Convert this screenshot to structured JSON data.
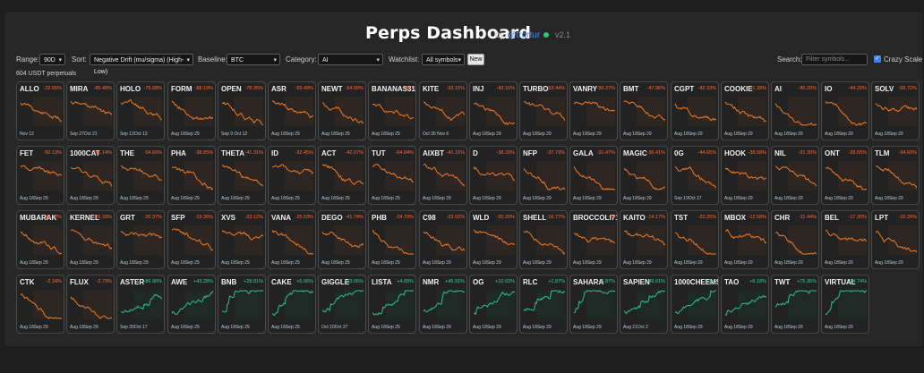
{
  "header": {
    "title": "Perps Dashboard",
    "by": "by",
    "handle": "@trdrtur",
    "version": "v2.1"
  },
  "controls": {
    "range_label": "Range:",
    "range_value": "90D",
    "sort_label": "Sort:",
    "sort_value": "Negative Drift (mu/sigma) (High-Low)",
    "baseline_label": "Baseline:",
    "baseline_value": "BTC",
    "category_label": "Category:",
    "category_value": "AI",
    "watchlist_label": "Watchlist:",
    "watchlist_value": "All symbols",
    "new_button": "New",
    "search_label": "Search:",
    "search_placeholder": "Filter symbols...",
    "crazy_scale_label": "Crazy Scale",
    "crazy_scale_checked": true
  },
  "summary": {
    "count_text": "604 USDT perpetuals"
  },
  "colors": {
    "negative": "#ff6a3d",
    "positive": "#3ad29f",
    "line_down": "#f07b22",
    "line_up": "#2fbf8a"
  },
  "tiles": [
    {
      "sym": "ALLO",
      "chg": "-22.65%",
      "dates": "Nov 12",
      "trend": "down"
    },
    {
      "sym": "MIRA",
      "chg": "-85.49%",
      "dates": "Sep 27Oct 21",
      "trend": "down"
    },
    {
      "sym": "HOLO",
      "chg": "-75.68%",
      "dates": "Sep 12Oct 13",
      "trend": "down"
    },
    {
      "sym": "FORM",
      "chg": "-88.19%",
      "dates": "Aug 18Sep 29",
      "trend": "down"
    },
    {
      "sym": "OPEN",
      "chg": "-78.35%",
      "dates": "Sep 9 Oct 12",
      "trend": "down"
    },
    {
      "sym": "ASR",
      "chg": "-69.49%",
      "dates": "Aug 18Sep 29",
      "trend": "down"
    },
    {
      "sym": "NEWT",
      "chg": "-54.90%",
      "dates": "Aug 18Sep 29",
      "trend": "down"
    },
    {
      "sym": "BANANAS31",
      "chg": "-59.7",
      "dates": "Aug 18Sep 29",
      "trend": "down"
    },
    {
      "sym": "KITE",
      "chg": "-33.15%",
      "dates": "Oct 30 Nov 6",
      "trend": "down"
    },
    {
      "sym": "INJ",
      "chg": "-43.16%",
      "dates": "Aug 18Sep 29",
      "trend": "down"
    },
    {
      "sym": "TURBO",
      "chg": "-53.44%",
      "dates": "Aug 18Sep 29",
      "trend": "down"
    },
    {
      "sym": "VANRY",
      "chg": "-56.27%",
      "dates": "Aug 18Sep 29",
      "trend": "down"
    },
    {
      "sym": "BMT",
      "chg": "-47.96%",
      "dates": "Aug 18Sep 29",
      "trend": "down"
    },
    {
      "sym": "CGPT",
      "chg": "-42.33%",
      "dates": "Aug 18Sep 29",
      "trend": "down"
    },
    {
      "sym": "COOKIE",
      "chg": "-41.28%",
      "dates": "Aug 18Sep 29",
      "trend": "down"
    },
    {
      "sym": "AI",
      "chg": "-45.29%",
      "dates": "Aug 18Sep 29",
      "trend": "down"
    },
    {
      "sym": "IO",
      "chg": "-44.20%",
      "dates": "Aug 18Sep 29",
      "trend": "down"
    },
    {
      "sym": "SOLV",
      "chg": "-56.72%",
      "dates": "Aug 18Sep 29",
      "trend": "down"
    },
    {
      "sym": "FET",
      "chg": "-50.13%",
      "dates": "Aug 18Sep 29",
      "trend": "down"
    },
    {
      "sym": "1000CAT",
      "chg": "-41.14%",
      "dates": "Aug 18Sep 29",
      "trend": "down"
    },
    {
      "sym": "THE",
      "chg": "-54.60%",
      "dates": "Aug 18Sep 29",
      "trend": "down"
    },
    {
      "sym": "PHA",
      "chg": "-38.85%",
      "dates": "Aug 18Sep 29",
      "trend": "down"
    },
    {
      "sym": "THETA",
      "chg": "-41.31%",
      "dates": "Aug 18Sep 29",
      "trend": "down"
    },
    {
      "sym": "ID",
      "chg": "-32.45%",
      "dates": "Aug 18Sep 29",
      "trend": "down"
    },
    {
      "sym": "ACT",
      "chg": "-42.07%",
      "dates": "Aug 18Sep 29",
      "trend": "down"
    },
    {
      "sym": "TUT",
      "chg": "-64.84%",
      "dates": "Aug 18Sep 29",
      "trend": "down"
    },
    {
      "sym": "AIXBT",
      "chg": "-41.15%",
      "dates": "Aug 18Sep 29",
      "trend": "down"
    },
    {
      "sym": "D",
      "chg": "-38.33%",
      "dates": "Aug 18Sep 29",
      "trend": "down"
    },
    {
      "sym": "NFP",
      "chg": "-37.73%",
      "dates": "Aug 18Sep 29",
      "trend": "down"
    },
    {
      "sym": "GALA",
      "chg": "-31.47%",
      "dates": "Aug 18Sep 29",
      "trend": "down"
    },
    {
      "sym": "MAGIC",
      "chg": "-36.41%",
      "dates": "Aug 18Sep 29",
      "trend": "down"
    },
    {
      "sym": "0G",
      "chg": "-44.65%",
      "dates": "Sep 19Oct 17",
      "trend": "down"
    },
    {
      "sym": "HOOK",
      "chg": "-38.58%",
      "dates": "Aug 18Sep 29",
      "trend": "down"
    },
    {
      "sym": "NIL",
      "chg": "-31.39%",
      "dates": "Aug 18Sep 29",
      "trend": "down"
    },
    {
      "sym": "ONT",
      "chg": "-28.65%",
      "dates": "Aug 18Sep 29",
      "trend": "down"
    },
    {
      "sym": "TLM",
      "chg": "-34.60%",
      "dates": "Aug 18Sep 29",
      "trend": "down"
    },
    {
      "sym": "MUBARAK",
      "chg": "-35.12%",
      "dates": "Aug 18Sep 29",
      "trend": "down"
    },
    {
      "sym": "KERNEL",
      "chg": "-35.33%",
      "dates": "Aug 18Sep 29",
      "trend": "down"
    },
    {
      "sym": "GRT",
      "chg": "-20.37%",
      "dates": "Aug 18Sep 29",
      "trend": "down"
    },
    {
      "sym": "SFP",
      "chg": "-19.36%",
      "dates": "Aug 18Sep 29",
      "trend": "down"
    },
    {
      "sym": "XVS",
      "chg": "-23.12%",
      "dates": "Aug 18Sep 29",
      "trend": "down"
    },
    {
      "sym": "VANA",
      "chg": "-25.53%",
      "dates": "Aug 18Sep 29",
      "trend": "down"
    },
    {
      "sym": "DEGO",
      "chg": "-41.74%",
      "dates": "Aug 18Sep 29",
      "trend": "down"
    },
    {
      "sym": "PHB",
      "chg": "-24.70%",
      "dates": "Aug 18Sep 29",
      "trend": "down"
    },
    {
      "sym": "C98",
      "chg": "-23.02%",
      "dates": "Aug 18Sep 29",
      "trend": "down"
    },
    {
      "sym": "WLD",
      "chg": "-20.20%",
      "dates": "Aug 18Sep 29",
      "trend": "down"
    },
    {
      "sym": "SHELL",
      "chg": "-16.77%",
      "dates": "Aug 18Sep 29",
      "trend": "down"
    },
    {
      "sym": "BROCCOLI714",
      "chg": "-26",
      "dates": "Aug 18Sep 29",
      "trend": "down"
    },
    {
      "sym": "KAITO",
      "chg": "-14.17%",
      "dates": "Aug 18Sep 29",
      "trend": "down"
    },
    {
      "sym": "TST",
      "chg": "-23.25%",
      "dates": "Aug 18Sep 29",
      "trend": "down"
    },
    {
      "sym": "MBOX",
      "chg": "-12.58%",
      "dates": "Aug 18Sep 29",
      "trend": "down"
    },
    {
      "sym": "CHR",
      "chg": "-11.44%",
      "dates": "Aug 18Sep 29",
      "trend": "down"
    },
    {
      "sym": "BEL",
      "chg": "-17.30%",
      "dates": "Aug 18Sep 29",
      "trend": "down"
    },
    {
      "sym": "LPT",
      "chg": "-10.26%",
      "dates": "Aug 18Sep 29",
      "trend": "down"
    },
    {
      "sym": "CTK",
      "chg": "-2.34%",
      "dates": "Aug 18Sep 29",
      "trend": "down"
    },
    {
      "sym": "FLUX",
      "chg": "-2.73%",
      "dates": "Aug 18Sep 29",
      "trend": "down"
    },
    {
      "sym": "ASTER",
      "chg": "+86.90%",
      "dates": "Sep 20Oct 17",
      "trend": "up"
    },
    {
      "sym": "AWE",
      "chg": "+43.28%",
      "dates": "Aug 18Sep 29",
      "trend": "up"
    },
    {
      "sym": "BNB",
      "chg": "+28.91%",
      "dates": "Aug 18Sep 29",
      "trend": "up"
    },
    {
      "sym": "CAKE",
      "chg": "+5.06%",
      "dates": "Aug 18Sep 29",
      "trend": "up"
    },
    {
      "sym": "GIGGLE",
      "chg": "+93.06%",
      "dates": "Oct 10Oct 27",
      "trend": "up"
    },
    {
      "sym": "LISTA",
      "chg": "+4.89%",
      "dates": "Aug 18Sep 29",
      "trend": "up"
    },
    {
      "sym": "NMR",
      "chg": "+45.91%",
      "dates": "Aug 18Sep 29",
      "trend": "up"
    },
    {
      "sym": "OG",
      "chg": "+10.93%",
      "dates": "Aug 18Sep 29",
      "trend": "up"
    },
    {
      "sym": "RLC",
      "chg": "+1.87%",
      "dates": "Aug 18Sep 29",
      "trend": "up"
    },
    {
      "sym": "SAHARA",
      "chg": "+0.87%",
      "dates": "Aug 18Sep 29",
      "trend": "up"
    },
    {
      "sym": "SAPIEN",
      "chg": "+48.61%",
      "dates": "Aug 21Oct 2",
      "trend": "up"
    },
    {
      "sym": "1000CHEEMS",
      "chg": "+2.6",
      "dates": "Aug 18Sep 29",
      "trend": "up"
    },
    {
      "sym": "TAO",
      "chg": "+6.18%",
      "dates": "Aug 18Sep 29",
      "trend": "up"
    },
    {
      "sym": "TWT",
      "chg": "+75.35%",
      "dates": "Aug 18Sep 29",
      "trend": "up"
    },
    {
      "sym": "VIRTUAL",
      "chg": "+14.74%",
      "dates": "Aug 18Sep 29",
      "trend": "up"
    }
  ]
}
